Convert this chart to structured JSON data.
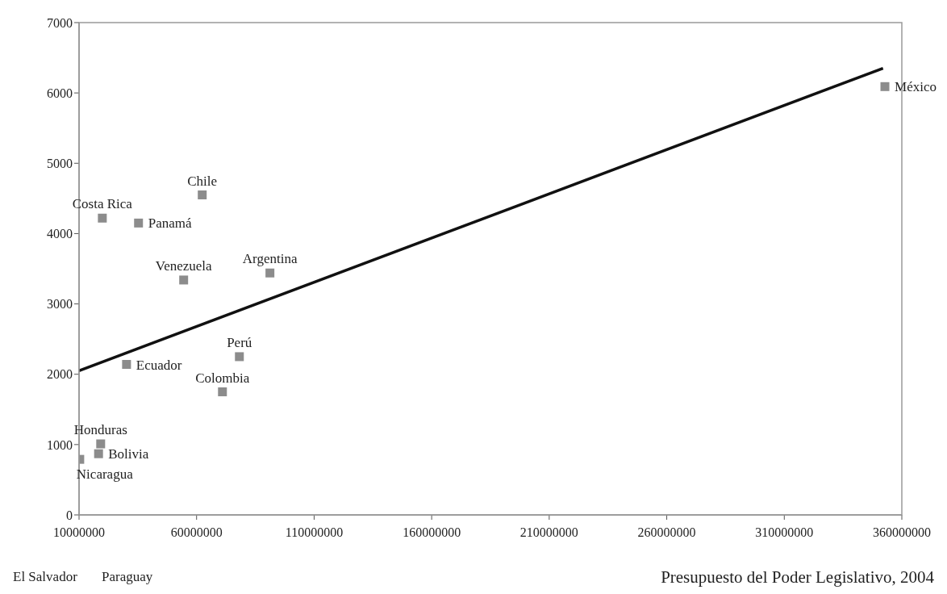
{
  "chart_data": {
    "type": "scatter",
    "xlabel": "Presupuesto del Poder Legislativo, 2004",
    "xlim": [
      10000000,
      360000000
    ],
    "xticks": [
      10000000,
      60000000,
      110000000,
      160000000,
      210000000,
      260000000,
      310000000,
      360000000
    ],
    "ylim": [
      0,
      7000
    ],
    "yticks": [
      0,
      1000,
      2000,
      3000,
      4000,
      5000,
      6000,
      7000
    ],
    "grid": false,
    "legend": false,
    "marker": "square",
    "series": [
      {
        "name": "Costa Rica",
        "color": "#8c8c8c",
        "x": [
          19900000
        ],
        "values": [
          4220
        ]
      },
      {
        "name": "Panamá",
        "color": "#8c8c8c",
        "x": [
          35300000
        ],
        "values": [
          4150
        ]
      },
      {
        "name": "Chile",
        "color": "#8c8c8c",
        "x": [
          62400000
        ],
        "values": [
          4550
        ]
      },
      {
        "name": "Venezuela",
        "color": "#8c8c8c",
        "x": [
          54500000
        ],
        "values": [
          3340
        ]
      },
      {
        "name": "Argentina",
        "color": "#8c8c8c",
        "x": [
          91200000
        ],
        "values": [
          3440
        ]
      },
      {
        "name": "Ecuador",
        "color": "#8c8c8c",
        "x": [
          30200000
        ],
        "values": [
          2140
        ]
      },
      {
        "name": "Perú",
        "color": "#8c8c8c",
        "x": [
          78200000
        ],
        "values": [
          2250
        ]
      },
      {
        "name": "Colombia",
        "color": "#8c8c8c",
        "x": [
          71000000
        ],
        "values": [
          1750
        ]
      },
      {
        "name": "Honduras",
        "color": "#8c8c8c",
        "x": [
          19200000
        ],
        "values": [
          1010
        ]
      },
      {
        "name": "Bolivia",
        "color": "#8c8c8c",
        "x": [
          18300000
        ],
        "values": [
          870
        ]
      },
      {
        "name": "Nicaragua",
        "color": "#8c8c8c",
        "x": [
          10300000
        ],
        "values": [
          790
        ]
      },
      {
        "name": "México",
        "color": "#8c8c8c",
        "x": [
          352800000
        ],
        "values": [
          6090
        ]
      },
      {
        "type": "line",
        "color": "#111111",
        "x": [
          10000000,
          352000000
        ],
        "values": [
          2050,
          6350
        ],
        "marker": "none"
      }
    ],
    "annotations": [
      "El Salvador",
      "Paraguay"
    ]
  }
}
